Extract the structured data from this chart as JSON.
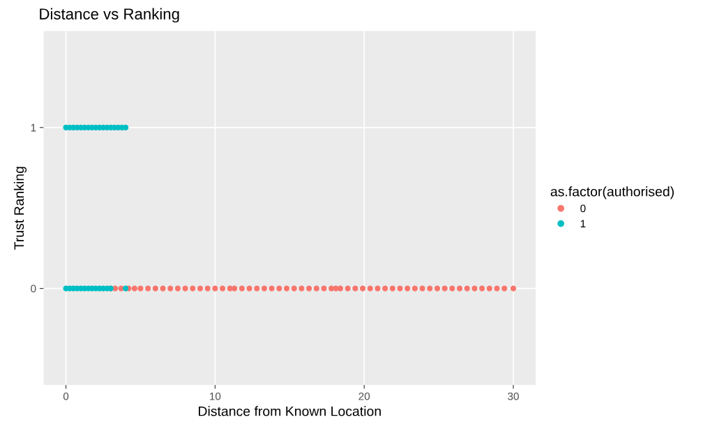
{
  "chart_data": {
    "type": "scatter",
    "title": "Distance vs Ranking",
    "xlabel": "Distance from Known Location",
    "ylabel": "Trust Ranking",
    "legend_title": "as.factor(authorised)",
    "series": [
      {
        "name": "0",
        "color": "#f8766d",
        "x": [
          3.0,
          3.3,
          3.7,
          4.2,
          4.6,
          5.0,
          5.5,
          6.0,
          6.5,
          7.0,
          7.5,
          8.0,
          8.5,
          9.0,
          9.5,
          10.0,
          10.5,
          11.0,
          11.3,
          11.8,
          12.3,
          12.8,
          13.3,
          13.8,
          14.3,
          14.8,
          15.3,
          15.8,
          16.3,
          16.8,
          17.3,
          17.8,
          18.1,
          18.4,
          18.9,
          19.4,
          19.9,
          20.4,
          20.9,
          21.4,
          21.9,
          22.4,
          22.9,
          23.4,
          23.9,
          24.4,
          24.9,
          25.4,
          25.9,
          26.4,
          26.9,
          27.4,
          27.9,
          28.4,
          28.9,
          29.4,
          30.0
        ],
        "values": [
          0,
          0,
          0,
          0,
          0,
          0,
          0,
          0,
          0,
          0,
          0,
          0,
          0,
          0,
          0,
          0,
          0,
          0,
          0,
          0,
          0,
          0,
          0,
          0,
          0,
          0,
          0,
          0,
          0,
          0,
          0,
          0,
          0,
          0,
          0,
          0,
          0,
          0,
          0,
          0,
          0,
          0,
          0,
          0,
          0,
          0,
          0,
          0,
          0,
          0,
          0,
          0,
          0,
          0,
          0,
          0,
          0
        ]
      },
      {
        "name": "1",
        "color": "#00bfc4",
        "x": [
          0,
          0.25,
          0.5,
          0.75,
          1.0,
          1.25,
          1.5,
          1.75,
          2.0,
          2.25,
          2.5,
          2.75,
          3.0,
          4.0,
          0,
          0.25,
          0.5,
          0.75,
          1.0,
          1.25,
          1.5,
          1.75,
          2.0,
          2.25,
          2.5,
          2.75,
          3.0,
          3.25,
          3.5,
          3.75,
          4.0
        ],
        "values": [
          0,
          0,
          0,
          0,
          0,
          0,
          0,
          0,
          0,
          0,
          0,
          0,
          0,
          0,
          1,
          1,
          1,
          1,
          1,
          1,
          1,
          1,
          1,
          1,
          1,
          1,
          1,
          1,
          1,
          1,
          1
        ]
      }
    ],
    "xlim": [
      -1.5,
      31.5
    ],
    "xticks": [
      0,
      10,
      20,
      30
    ],
    "ylim": [
      -0.6,
      1.6
    ],
    "yticks": [
      0,
      1
    ],
    "grid": true,
    "legend": "right",
    "marker": "circle"
  }
}
